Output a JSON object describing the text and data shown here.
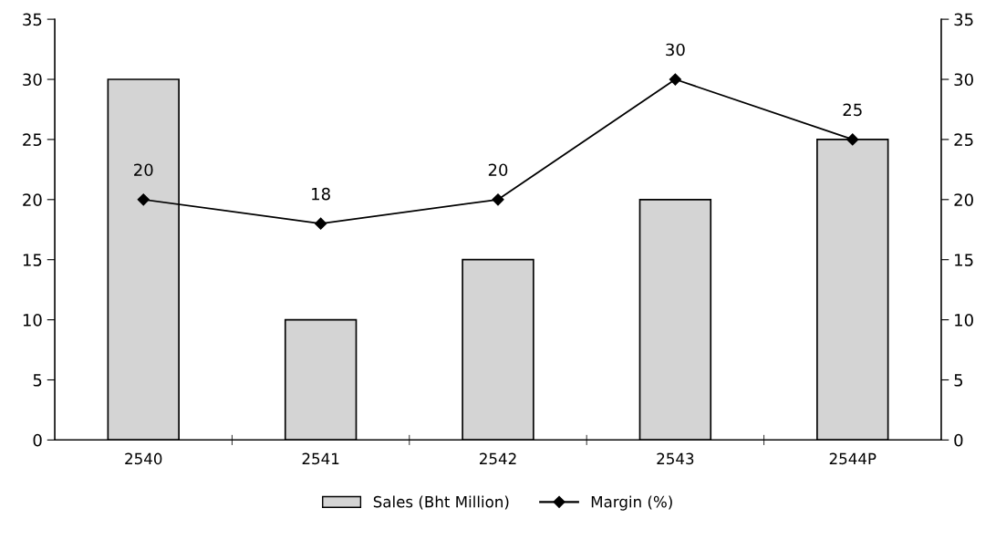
{
  "chart_data": {
    "type": "bar",
    "categories": [
      "2540",
      "2541",
      "2542",
      "2543",
      "2544P"
    ],
    "series": [
      {
        "name": "Sales (Bht Million)",
        "color": "#d4d4d4",
        "values": [
          30,
          10,
          15,
          20,
          25
        ]
      },
      {
        "name": "Margin (%)",
        "type": "line",
        "color": "#000000",
        "values": [
          20,
          18,
          20,
          30,
          25
        ],
        "value_labels": [
          "20",
          "18",
          "20",
          "30",
          "25"
        ]
      }
    ],
    "ylim": [
      0,
      35
    ],
    "yticks": [
      0,
      5,
      10,
      15,
      20,
      25,
      30,
      35
    ],
    "y2lim": [
      0,
      35
    ],
    "y2ticks": [
      0,
      5,
      10,
      15,
      20,
      25,
      30,
      35
    ],
    "marker": "diamond",
    "line_style": "solid",
    "grid": false,
    "legend": "bottom"
  }
}
